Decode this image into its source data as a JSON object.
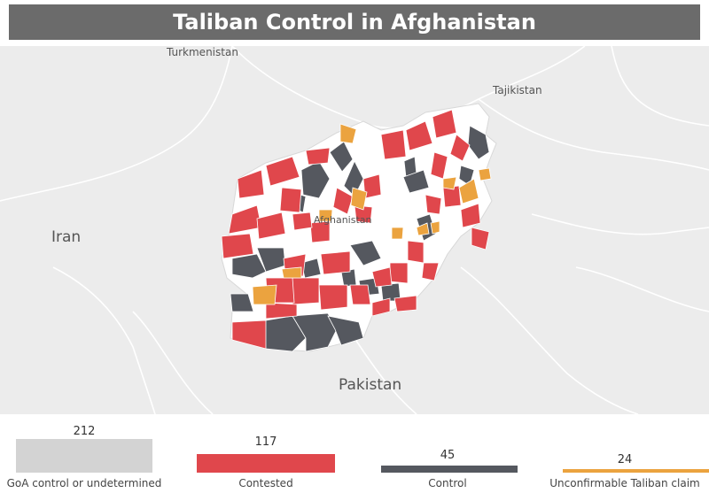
{
  "title": "Taliban Control in Afghanistan",
  "map": {
    "labels": {
      "turkmenistan": "Turkmenistan",
      "tajikistan": "Tajikistan",
      "afghanistan": "Afghanistan",
      "iran": "Iran",
      "pakistan": "Pakistan"
    },
    "colors": {
      "background": "#ececec",
      "border": "#ffffff",
      "afghanistan_base": "#ffffff",
      "contested": "#e0474c",
      "control": "#55585f",
      "unconfirmable": "#eba33f"
    }
  },
  "chart_data": {
    "type": "bar",
    "categories": [
      "GoA control or undetermined",
      "Contested",
      "Control",
      "Unconfirmable Taliban claim"
    ],
    "values": [
      212,
      117,
      45,
      24
    ],
    "colors": [
      "#d3d3d3",
      "#e0474c",
      "#55585f",
      "#eba33f"
    ],
    "ylim": [
      0,
      212
    ]
  }
}
